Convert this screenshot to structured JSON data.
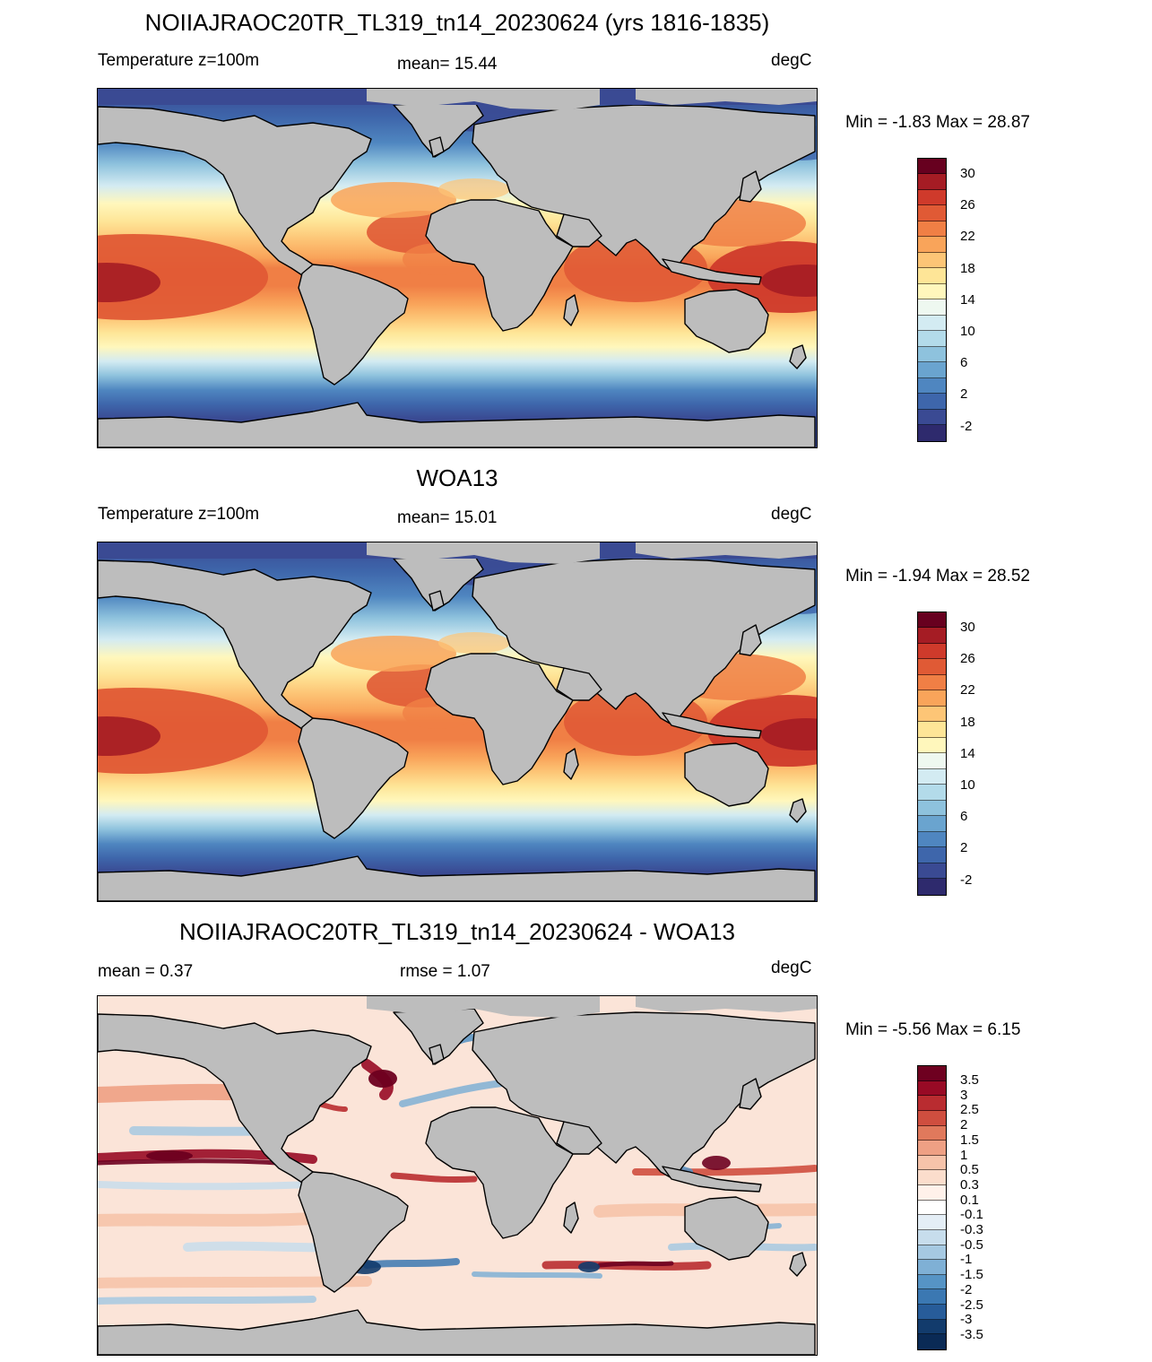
{
  "panels": [
    {
      "title": "NOIIAJRAOC20TR_TL319_tn14_20230624 (yrs 1816-1835)",
      "left_label": "Temperature z=100m",
      "center_label": "mean=  15.44",
      "units": "degC",
      "minmax": "Min =  -1.83 Max =  28.87",
      "colorbar_ticks": [
        "30",
        "26",
        "22",
        "18",
        "14",
        "10",
        "6",
        "2",
        "-2"
      ],
      "field": "model_temperature"
    },
    {
      "title": "WOA13",
      "left_label": "Temperature z=100m",
      "center_label": "mean=  15.01",
      "units": "degC",
      "minmax": "Min =  -1.94 Max =  28.52",
      "colorbar_ticks": [
        "30",
        "26",
        "22",
        "18",
        "14",
        "10",
        "6",
        "2",
        "-2"
      ],
      "field": "obs_temperature"
    },
    {
      "title": "NOIIAJRAOC20TR_TL319_tn14_20230624 - WOA13",
      "left_label": "mean =   0.37",
      "center_label": "rmse =   1.07",
      "units": "degC",
      "minmax": "Min =  -5.56 Max =   6.15",
      "colorbar_ticks": [
        "3.5",
        "3",
        "2.5",
        "2",
        "1.5",
        "1",
        "0.5",
        "0.3",
        "0.1",
        "-0.1",
        "-0.3",
        "-0.5",
        "-1",
        "-1.5",
        "-2",
        "-2.5",
        "-3",
        "-3.5"
      ],
      "field": "difference"
    }
  ],
  "colors": {
    "land": "#bdbdbd",
    "temperature_scale": [
      "#67001f",
      "#a51c24",
      "#cf3a2b",
      "#e05a35",
      "#f07f45",
      "#f9a45a",
      "#fdc576",
      "#fee597",
      "#fff7bc",
      "#eef8f0",
      "#d3ebf2",
      "#b3dbea",
      "#8ec2dd",
      "#6aa4cf",
      "#4f86c0",
      "#3e66ab",
      "#3a4a93",
      "#2e2a6d"
    ],
    "difference_scale": [
      "#6e0020",
      "#980a25",
      "#b92c30",
      "#cf4e3f",
      "#e0795c",
      "#eea084",
      "#f6c3aa",
      "#fbddcc",
      "#fff1ea",
      "#ffffff",
      "#e4eef6",
      "#c7ddec",
      "#a6c9e2",
      "#7fb0d5",
      "#5694c5",
      "#3b78b2",
      "#275c99",
      "#123b6c",
      "#0a2a55"
    ]
  }
}
